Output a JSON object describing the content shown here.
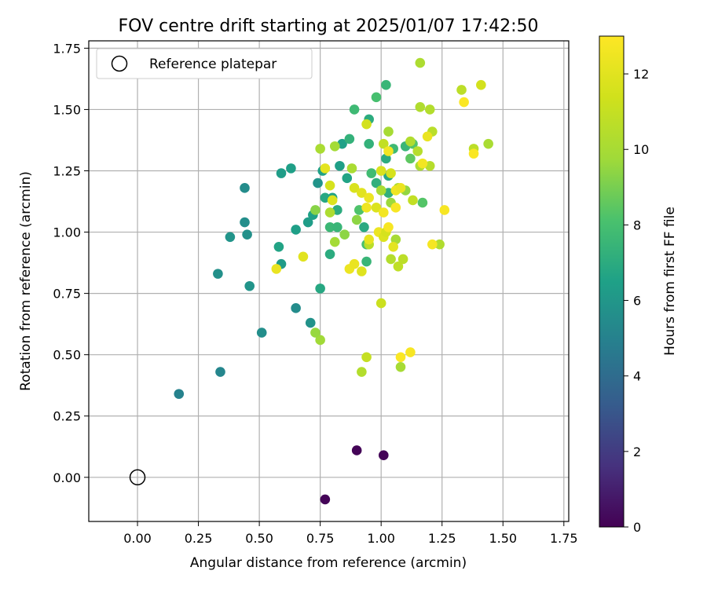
{
  "chart_data": {
    "type": "scatter",
    "title": "FOV centre drift starting at 2025/01/07 17:42:50",
    "xlabel": "Angular distance from reference (arcmin)",
    "ylabel": "Rotation from reference (arcmin)",
    "xlim": [
      -0.2,
      1.77
    ],
    "ylim": [
      -0.18,
      1.78
    ],
    "xticks": [
      "0.00",
      "0.25",
      "0.50",
      "0.75",
      "1.00",
      "1.25",
      "1.50",
      "1.75"
    ],
    "yticks": [
      "0.00",
      "0.25",
      "0.50",
      "0.75",
      "1.00",
      "1.25",
      "1.50",
      "1.75"
    ],
    "grid": true,
    "legend": {
      "placement": "upper-left",
      "entries": [
        "Reference platepar"
      ]
    },
    "reference_point": {
      "x": 0.0,
      "y": 0.0
    },
    "colorbar": {
      "label": "Hours from first FF file",
      "range": [
        0,
        13
      ],
      "ticks": [
        "0",
        "2",
        "4",
        "6",
        "8",
        "10",
        "12"
      ],
      "colormap": "viridis"
    },
    "points": [
      [
        0.77,
        -0.09,
        0.1
      ],
      [
        0.9,
        0.11,
        0.1
      ],
      [
        1.01,
        0.09,
        0.1
      ],
      [
        0.17,
        0.34,
        5.0
      ],
      [
        0.34,
        0.43,
        5.2
      ],
      [
        0.51,
        0.59,
        5.6
      ],
      [
        0.65,
        0.69,
        5.5
      ],
      [
        0.71,
        0.63,
        5.8
      ],
      [
        0.33,
        0.83,
        5.7
      ],
      [
        0.46,
        0.78,
        5.9
      ],
      [
        0.59,
        0.87,
        6.2
      ],
      [
        0.58,
        0.94,
        6.6
      ],
      [
        0.38,
        0.98,
        5.9
      ],
      [
        0.45,
        0.99,
        5.7
      ],
      [
        0.44,
        1.04,
        5.6
      ],
      [
        0.65,
        1.01,
        6.4
      ],
      [
        0.7,
        1.04,
        6.3
      ],
      [
        0.72,
        1.07,
        6.5
      ],
      [
        0.75,
        0.77,
        6.8
      ],
      [
        0.79,
        0.91,
        7.0
      ],
      [
        0.44,
        1.18,
        5.5
      ],
      [
        0.59,
        1.24,
        6.3
      ],
      [
        0.63,
        1.26,
        6.4
      ],
      [
        0.74,
        1.2,
        5.9
      ],
      [
        0.76,
        1.25,
        6.5
      ],
      [
        0.77,
        1.14,
        6.8
      ],
      [
        0.8,
        1.14,
        6.6
      ],
      [
        0.82,
        1.09,
        7.0
      ],
      [
        0.79,
        1.02,
        7.6
      ],
      [
        0.82,
        1.02,
        7.5
      ],
      [
        0.83,
        1.27,
        6.4
      ],
      [
        0.84,
        1.36,
        6.5
      ],
      [
        0.86,
        1.22,
        6.6
      ],
      [
        0.87,
        1.38,
        7.3
      ],
      [
        0.89,
        1.5,
        7.7
      ],
      [
        0.91,
        1.09,
        8.2
      ],
      [
        0.93,
        1.02,
        6.9
      ],
      [
        0.94,
        0.88,
        7.5
      ],
      [
        0.95,
        1.46,
        7.0
      ],
      [
        0.95,
        1.36,
        7.3
      ],
      [
        0.96,
        1.24,
        7.8
      ],
      [
        0.98,
        1.2,
        7.2
      ],
      [
        0.98,
        1.55,
        8.0
      ],
      [
        1.02,
        1.6,
        7.5
      ],
      [
        1.02,
        1.3,
        7.0
      ],
      [
        1.03,
        1.23,
        6.8
      ],
      [
        1.03,
        1.16,
        7.2
      ],
      [
        1.05,
        1.34,
        7.7
      ],
      [
        1.1,
        1.35,
        7.5
      ],
      [
        1.13,
        1.36,
        8.3
      ],
      [
        1.12,
        1.3,
        8.5
      ],
      [
        1.17,
        1.12,
        8.3
      ],
      [
        0.94,
        0.95,
        8.0
      ],
      [
        0.75,
        0.56,
        9.8
      ],
      [
        0.73,
        0.59,
        9.6
      ],
      [
        0.73,
        1.09,
        9.3
      ],
      [
        0.79,
        1.08,
        10.2
      ],
      [
        0.81,
        0.96,
        9.9
      ],
      [
        0.85,
        0.99,
        9.4
      ],
      [
        0.75,
        1.34,
        10.1
      ],
      [
        0.81,
        1.35,
        9.9
      ],
      [
        0.88,
        1.26,
        10.1
      ],
      [
        0.9,
        1.05,
        9.4
      ],
      [
        0.92,
        0.43,
        10.4
      ],
      [
        0.94,
        0.49,
        11.0
      ],
      [
        1.08,
        0.45,
        10.0
      ],
      [
        1.0,
        0.71,
        11.2
      ],
      [
        1.04,
        0.89,
        10.4
      ],
      [
        1.07,
        0.86,
        10.8
      ],
      [
        1.09,
        0.89,
        10.7
      ],
      [
        1.06,
        0.97,
        10.0
      ],
      [
        0.95,
        0.95,
        10.6
      ],
      [
        1.0,
        1.17,
        10.1
      ],
      [
        1.03,
        1.41,
        10.0
      ],
      [
        1.01,
        1.36,
        10.9
      ],
      [
        1.04,
        1.12,
        9.7
      ],
      [
        1.07,
        1.18,
        10.3
      ],
      [
        1.1,
        1.17,
        9.5
      ],
      [
        1.12,
        1.37,
        10.3
      ],
      [
        1.13,
        1.13,
        10.9
      ],
      [
        1.15,
        1.33,
        10.5
      ],
      [
        1.16,
        1.27,
        10.2
      ],
      [
        1.16,
        1.51,
        10.3
      ],
      [
        1.16,
        1.69,
        10.2
      ],
      [
        1.2,
        1.5,
        10.4
      ],
      [
        1.2,
        1.27,
        10.5
      ],
      [
        1.21,
        1.41,
        10.6
      ],
      [
        1.24,
        0.95,
        10.3
      ],
      [
        1.33,
        1.58,
        10.7
      ],
      [
        1.38,
        1.34,
        10.7
      ],
      [
        1.44,
        1.36,
        10.1
      ],
      [
        1.41,
        1.6,
        11.5
      ],
      [
        0.68,
        0.9,
        12.0
      ],
      [
        0.57,
        0.85,
        12.3
      ],
      [
        0.77,
        1.26,
        12.1
      ],
      [
        0.79,
        1.19,
        11.6
      ],
      [
        0.8,
        1.13,
        11.8
      ],
      [
        0.87,
        0.85,
        12.4
      ],
      [
        0.89,
        0.87,
        12.3
      ],
      [
        0.92,
        0.84,
        11.9
      ],
      [
        0.89,
        1.18,
        11.7
      ],
      [
        0.92,
        1.16,
        12.0
      ],
      [
        0.94,
        1.1,
        12.5
      ],
      [
        0.94,
        1.44,
        11.5
      ],
      [
        0.95,
        0.97,
        12.2
      ],
      [
        0.95,
        1.14,
        12.4
      ],
      [
        0.98,
        1.1,
        11.8
      ],
      [
        0.99,
        1.0,
        12.4
      ],
      [
        1.0,
        1.25,
        11.7
      ],
      [
        1.01,
        0.98,
        11.8
      ],
      [
        1.01,
        1.08,
        12.6
      ],
      [
        1.02,
        1.0,
        11.6
      ],
      [
        1.03,
        1.02,
        12.8
      ],
      [
        1.03,
        1.33,
        12.6
      ],
      [
        1.04,
        1.24,
        11.6
      ],
      [
        1.05,
        0.94,
        12.1
      ],
      [
        1.06,
        1.1,
        12.8
      ],
      [
        1.06,
        1.17,
        12.5
      ],
      [
        1.08,
        1.18,
        12.3
      ],
      [
        1.08,
        0.49,
        12.9
      ],
      [
        1.12,
        0.51,
        12.8
      ],
      [
        1.17,
        1.28,
        12.6
      ],
      [
        1.19,
        1.39,
        12.3
      ],
      [
        1.21,
        0.95,
        12.7
      ],
      [
        1.26,
        1.09,
        12.8
      ],
      [
        1.34,
        1.53,
        12.9
      ],
      [
        1.38,
        1.32,
        12.9
      ]
    ]
  }
}
